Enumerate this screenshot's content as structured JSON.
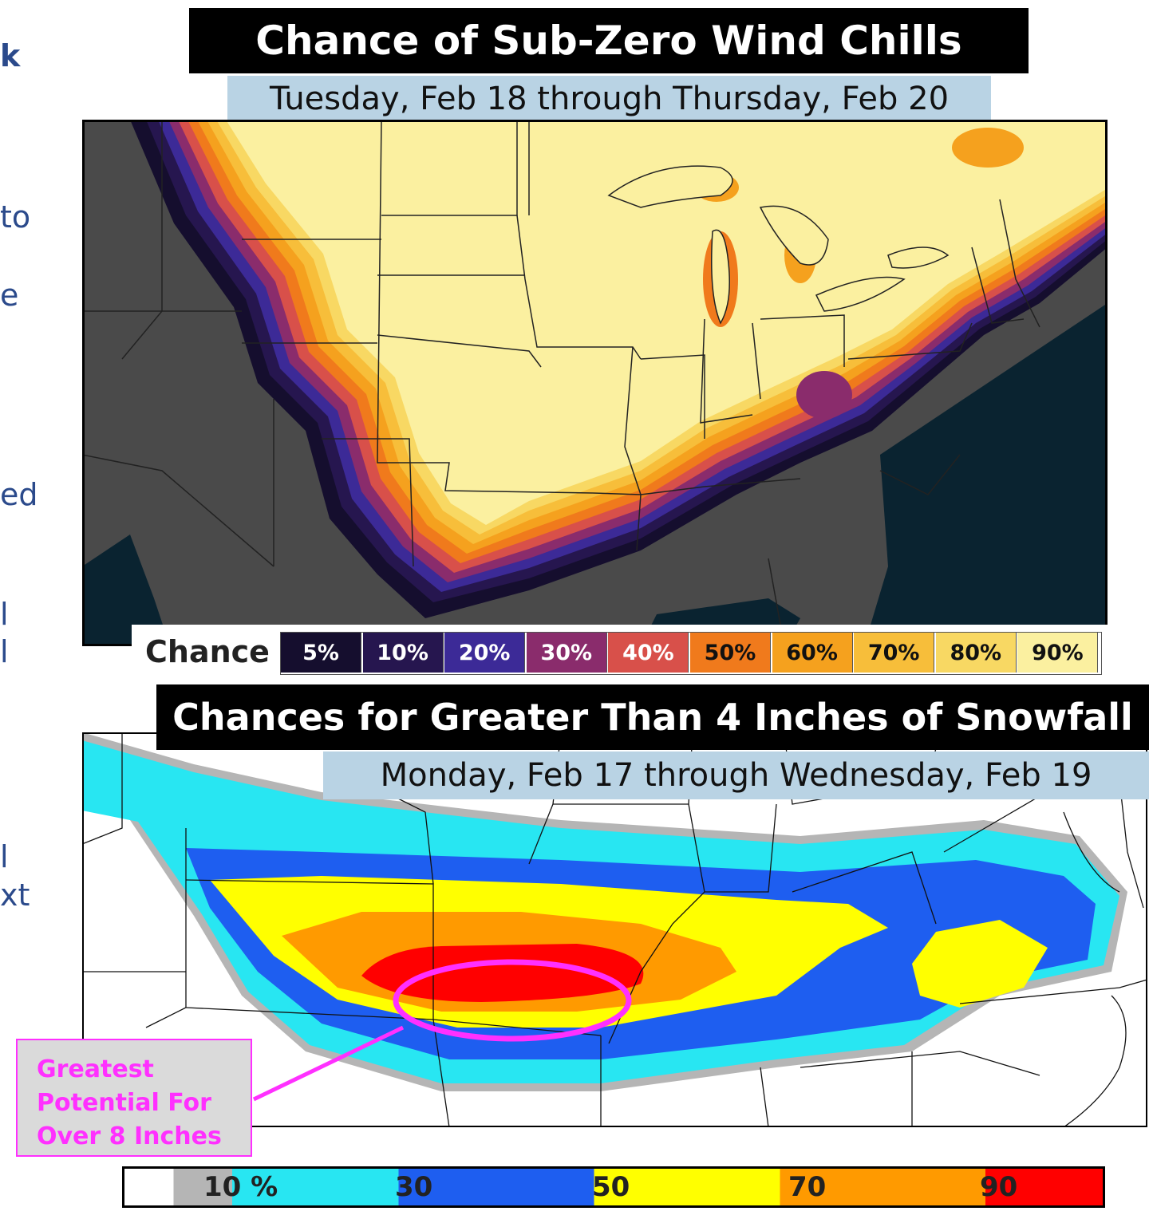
{
  "side_fragments": [
    "k",
    "to",
    "e",
    "ed",
    "l",
    "l",
    "l",
    "xt"
  ],
  "top_map": {
    "title": "Chance of Sub-Zero Wind Chills",
    "subtitle": "Tuesday, Feb 18 through Thursday, Feb 20",
    "legend_title": "Chance",
    "legend": [
      {
        "label": "5%",
        "color": "#150e2e",
        "text_color": "#ffffff"
      },
      {
        "label": "10%",
        "color": "#26164f",
        "text_color": "#ffffff"
      },
      {
        "label": "20%",
        "color": "#3c2a97",
        "text_color": "#ffffff"
      },
      {
        "label": "30%",
        "color": "#8a2c6c",
        "text_color": "#ffffff"
      },
      {
        "label": "40%",
        "color": "#d8504a",
        "text_color": "#ffffff"
      },
      {
        "label": "50%",
        "color": "#f07a1c",
        "text_color": "#111111"
      },
      {
        "label": "60%",
        "color": "#f5a11e",
        "text_color": "#111111"
      },
      {
        "label": "70%",
        "color": "#f7be3a",
        "text_color": "#111111"
      },
      {
        "label": "80%",
        "color": "#f8d863",
        "text_color": "#111111"
      },
      {
        "label": "90%",
        "color": "#fbf0a0",
        "text_color": "#111111"
      }
    ]
  },
  "bottom_map": {
    "title": "Chances for Greater Than 4 Inches of Snowfall",
    "subtitle": "Monday, Feb 17 through Wednesday, Feb 19",
    "callout": [
      "Greatest",
      "Potential For",
      "Over 8 Inches"
    ],
    "scale_labels": [
      "10 %",
      "30",
      "50",
      "70",
      "90"
    ],
    "scale_colors": [
      "#ffffff",
      "#b5b5b5",
      "#28e6f2",
      "#1e5ef0",
      "#ffff00",
      "#ff9a00",
      "#ff0000"
    ]
  }
}
